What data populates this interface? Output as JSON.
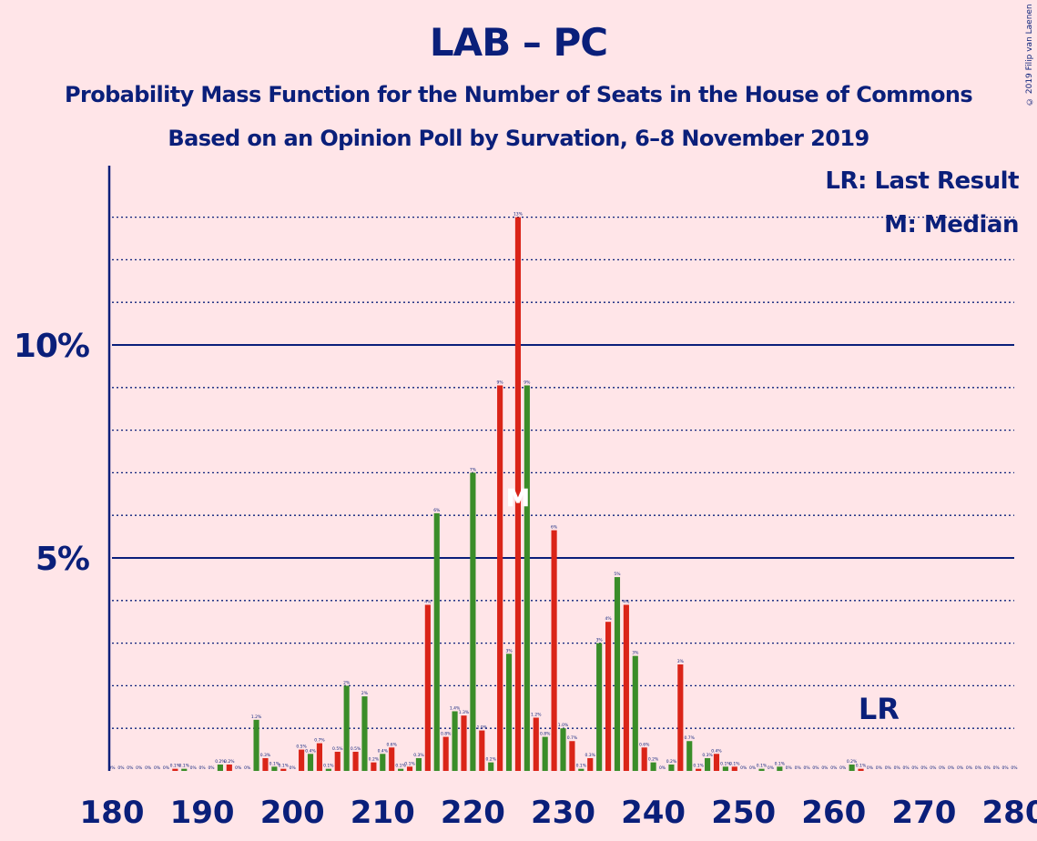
{
  "chart_data": {
    "type": "bar",
    "title": "LAB – PC",
    "subtitle": "Probability Mass Function for the Number of Seats in the House of Commons",
    "subtitle2": "Based on an Opinion Poll by Survation, 6–8 November 2019",
    "copyright": "© 2019 Filip van Laenen",
    "legend": {
      "lr": "LR: Last Result",
      "m": "M: Median",
      "placement": "top-right"
    },
    "xlim": [
      180,
      280
    ],
    "ylim": [
      0,
      14
    ],
    "x_ticks": [
      180,
      190,
      200,
      210,
      220,
      230,
      240,
      250,
      260,
      270,
      280
    ],
    "y_ticks": [
      {
        "value": 5,
        "label": "5%"
      },
      {
        "value": 10,
        "label": "10%"
      }
    ],
    "median": 225,
    "median_label": "M",
    "last_result": 265,
    "last_result_label": "LR",
    "colors": {
      "odd": "#da2418",
      "even": "#3a8d29",
      "axis": "#0a1f7a",
      "background": "#ffe5e8",
      "median_mark": "#ffffff"
    },
    "values": [
      {
        "x": 180,
        "v": 0,
        "label": "0%"
      },
      {
        "x": 181,
        "v": 0,
        "label": "0%"
      },
      {
        "x": 182,
        "v": 0,
        "label": "0%"
      },
      {
        "x": 183,
        "v": 0,
        "label": "0%"
      },
      {
        "x": 184,
        "v": 0,
        "label": "0%"
      },
      {
        "x": 185,
        "v": 0,
        "label": "0%"
      },
      {
        "x": 186,
        "v": 0,
        "label": "0%"
      },
      {
        "x": 187,
        "v": 0.05,
        "label": "0.1%"
      },
      {
        "x": 188,
        "v": 0.05,
        "label": "0.1%"
      },
      {
        "x": 189,
        "v": 0,
        "label": "0%"
      },
      {
        "x": 190,
        "v": 0,
        "label": "0%"
      },
      {
        "x": 191,
        "v": 0,
        "label": "0%"
      },
      {
        "x": 192,
        "v": 0.15,
        "label": "0.2%"
      },
      {
        "x": 193,
        "v": 0.15,
        "label": "0.2%"
      },
      {
        "x": 194,
        "v": 0,
        "label": "0%"
      },
      {
        "x": 195,
        "v": 0,
        "label": "0%"
      },
      {
        "x": 196,
        "v": 1.2,
        "label": "1.2%"
      },
      {
        "x": 197,
        "v": 0.3,
        "label": "0.3%"
      },
      {
        "x": 198,
        "v": 0.1,
        "label": "0.1%"
      },
      {
        "x": 199,
        "v": 0.05,
        "label": "0.1%"
      },
      {
        "x": 200,
        "v": 0,
        "label": "0%"
      },
      {
        "x": 201,
        "v": 0.5,
        "label": "0.5%"
      },
      {
        "x": 202,
        "v": 0.4,
        "label": "0.4%"
      },
      {
        "x": 203,
        "v": 0.65,
        "label": "0.7%"
      },
      {
        "x": 204,
        "v": 0.05,
        "label": "0.1%"
      },
      {
        "x": 205,
        "v": 0.45,
        "label": "0.5%"
      },
      {
        "x": 206,
        "v": 2.0,
        "label": "2%"
      },
      {
        "x": 207,
        "v": 0.45,
        "label": "0.5%"
      },
      {
        "x": 208,
        "v": 1.75,
        "label": "2%"
      },
      {
        "x": 209,
        "v": 0.2,
        "label": "0.2%"
      },
      {
        "x": 210,
        "v": 0.4,
        "label": "0.4%"
      },
      {
        "x": 211,
        "v": 0.55,
        "label": "0.6%"
      },
      {
        "x": 212,
        "v": 0.05,
        "label": "0.1%"
      },
      {
        "x": 213,
        "v": 0.1,
        "label": "0.1%"
      },
      {
        "x": 214,
        "v": 0.3,
        "label": "0.3%"
      },
      {
        "x": 215,
        "v": 3.9,
        "label": "4%"
      },
      {
        "x": 216,
        "v": 6.05,
        "label": "6%"
      },
      {
        "x": 217,
        "v": 0.8,
        "label": "0.8%"
      },
      {
        "x": 218,
        "v": 1.4,
        "label": "1.4%"
      },
      {
        "x": 219,
        "v": 1.3,
        "label": "1.3%"
      },
      {
        "x": 220,
        "v": 7.0,
        "label": "7%"
      },
      {
        "x": 221,
        "v": 0.95,
        "label": "1.0%"
      },
      {
        "x": 222,
        "v": 0.2,
        "label": "0.2%"
      },
      {
        "x": 223,
        "v": 9.05,
        "label": "9%"
      },
      {
        "x": 224,
        "v": 2.75,
        "label": "3%"
      },
      {
        "x": 225,
        "v": 13.0,
        "label": "13%"
      },
      {
        "x": 226,
        "v": 9.05,
        "label": "9%"
      },
      {
        "x": 227,
        "v": 1.25,
        "label": "1.2%"
      },
      {
        "x": 228,
        "v": 0.8,
        "label": "0.8%"
      },
      {
        "x": 229,
        "v": 5.65,
        "label": "6%"
      },
      {
        "x": 230,
        "v": 1.0,
        "label": "1.0%"
      },
      {
        "x": 231,
        "v": 0.7,
        "label": "0.7%"
      },
      {
        "x": 232,
        "v": 0.05,
        "label": "0.1%"
      },
      {
        "x": 233,
        "v": 0.3,
        "label": "0.3%"
      },
      {
        "x": 234,
        "v": 3.0,
        "label": "3%"
      },
      {
        "x": 235,
        "v": 3.5,
        "label": "4%"
      },
      {
        "x": 236,
        "v": 4.55,
        "label": "5%"
      },
      {
        "x": 237,
        "v": 3.9,
        "label": "4%"
      },
      {
        "x": 238,
        "v": 2.7,
        "label": "3%"
      },
      {
        "x": 239,
        "v": 0.55,
        "label": "0.6%"
      },
      {
        "x": 240,
        "v": 0.2,
        "label": "0.2%"
      },
      {
        "x": 241,
        "v": 0,
        "label": "0%"
      },
      {
        "x": 242,
        "v": 0.15,
        "label": "0.2%"
      },
      {
        "x": 243,
        "v": 2.5,
        "label": "3%"
      },
      {
        "x": 244,
        "v": 0.7,
        "label": "0.7%"
      },
      {
        "x": 245,
        "v": 0.05,
        "label": "0.1%"
      },
      {
        "x": 246,
        "v": 0.3,
        "label": "0.3%"
      },
      {
        "x": 247,
        "v": 0.4,
        "label": "0.4%"
      },
      {
        "x": 248,
        "v": 0.1,
        "label": "0.1%"
      },
      {
        "x": 249,
        "v": 0.1,
        "label": "0.1%"
      },
      {
        "x": 250,
        "v": 0,
        "label": "0%"
      },
      {
        "x": 251,
        "v": 0,
        "label": "0%"
      },
      {
        "x": 252,
        "v": 0.05,
        "label": "0.1%"
      },
      {
        "x": 253,
        "v": 0,
        "label": "0%"
      },
      {
        "x": 254,
        "v": 0.1,
        "label": "0.1%"
      },
      {
        "x": 255,
        "v": 0,
        "label": "0%"
      },
      {
        "x": 256,
        "v": 0,
        "label": "0%"
      },
      {
        "x": 257,
        "v": 0,
        "label": "0%"
      },
      {
        "x": 258,
        "v": 0,
        "label": "0%"
      },
      {
        "x": 259,
        "v": 0,
        "label": "0%"
      },
      {
        "x": 260,
        "v": 0,
        "label": "0%"
      },
      {
        "x": 261,
        "v": 0,
        "label": "0%"
      },
      {
        "x": 262,
        "v": 0.15,
        "label": "0.2%"
      },
      {
        "x": 263,
        "v": 0.05,
        "label": "0.1%"
      },
      {
        "x": 264,
        "v": 0,
        "label": "0%"
      },
      {
        "x": 265,
        "v": 0,
        "label": "0%"
      },
      {
        "x": 266,
        "v": 0,
        "label": "0%"
      },
      {
        "x": 267,
        "v": 0,
        "label": "0%"
      },
      {
        "x": 268,
        "v": 0,
        "label": "0%"
      },
      {
        "x": 269,
        "v": 0,
        "label": "0%"
      },
      {
        "x": 270,
        "v": 0,
        "label": "0%"
      },
      {
        "x": 271,
        "v": 0,
        "label": "0%"
      },
      {
        "x": 272,
        "v": 0,
        "label": "0%"
      },
      {
        "x": 273,
        "v": 0,
        "label": "0%"
      },
      {
        "x": 274,
        "v": 0,
        "label": "0%"
      },
      {
        "x": 275,
        "v": 0,
        "label": "0%"
      },
      {
        "x": 276,
        "v": 0,
        "label": "0%"
      },
      {
        "x": 277,
        "v": 0,
        "label": "0%"
      },
      {
        "x": 278,
        "v": 0,
        "label": "0%"
      },
      {
        "x": 279,
        "v": 0,
        "label": "0%"
      },
      {
        "x": 280,
        "v": 0,
        "label": "0%"
      }
    ]
  }
}
